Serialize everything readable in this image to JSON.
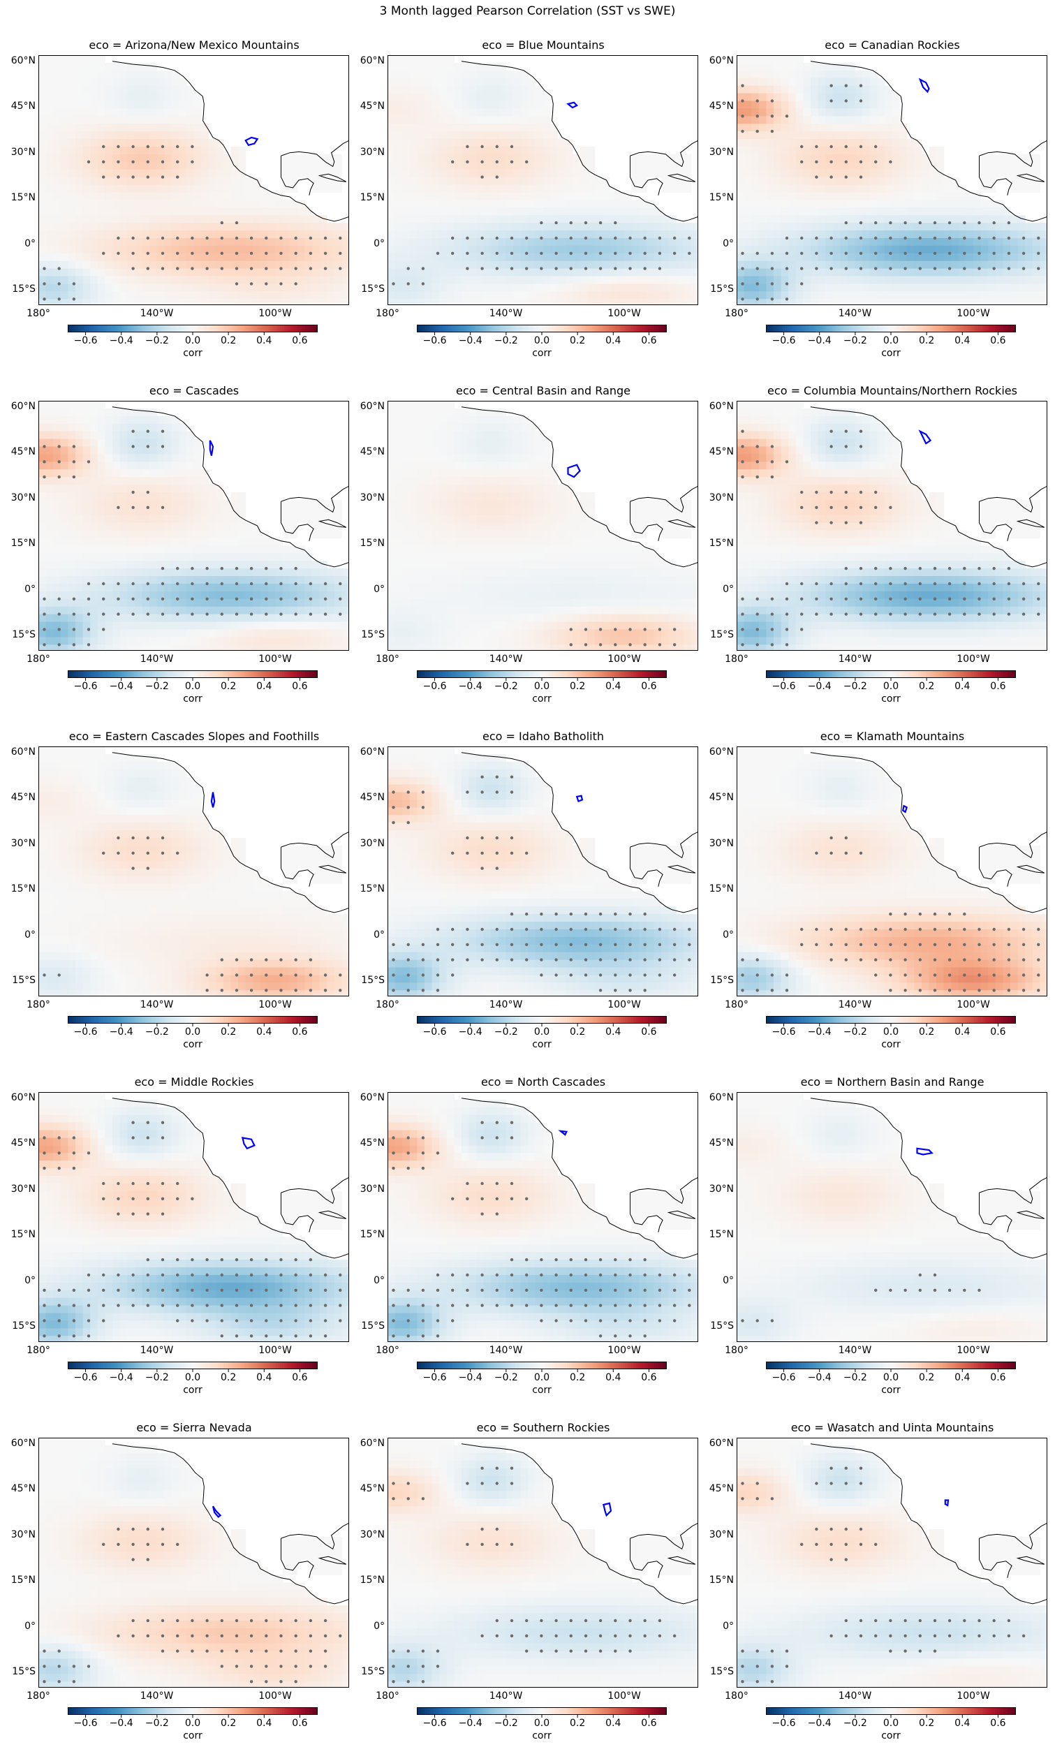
{
  "figure_title": "3 Month lagged Pearson Correlation (SST vs SWE)",
  "colors": {
    "colormap": [
      "#053061",
      "#2166ac",
      "#4393c3",
      "#92c5de",
      "#d1e5f0",
      "#f7f7f7",
      "#fddbc7",
      "#f4a582",
      "#d6604d",
      "#b2182b",
      "#67001f"
    ],
    "stipple": "#6b6b6b",
    "region_outline": "#0000ff",
    "land": "#ffffff",
    "coast": "#000000"
  },
  "chart_data": {
    "type": "heatmap",
    "panel_title_prefix": "eco = ",
    "lon_ticks": [
      "180°",
      "140°W",
      "100°W"
    ],
    "lat_ticks": [
      "60°N",
      "45°N",
      "30°N",
      "15°N",
      "0°",
      "15°S"
    ],
    "colorbar": {
      "label": "corr",
      "vmin": -0.7,
      "vmax": 0.7,
      "ticks": [
        "−0.6",
        "−0.4",
        "−0.2",
        "0.0",
        "0.2",
        "0.4",
        "0.6"
      ],
      "cmap": "RdBu_r"
    },
    "panels": [
      {
        "eco": "Arizona/New Mexico Mountains",
        "nino": 0.22,
        "subtropic_n": 0.18,
        "np_blob": 0.0,
        "south_east": 0.05,
        "west_south": -0.2
      },
      {
        "eco": "Blue Mountains",
        "nino": -0.25,
        "subtropic_n": 0.12,
        "np_blob": 0.05,
        "south_east": 0.1,
        "west_south": -0.1
      },
      {
        "eco": "Canadian Rockies",
        "nino": -0.35,
        "subtropic_n": 0.15,
        "np_blob": 0.3,
        "south_east": 0.0,
        "west_south": -0.3
      },
      {
        "eco": "Cascades",
        "nino": -0.3,
        "subtropic_n": 0.1,
        "np_blob": 0.28,
        "south_east": 0.1,
        "west_south": -0.3
      },
      {
        "eco": "Central Basin and Range",
        "nino": -0.05,
        "subtropic_n": 0.08,
        "np_blob": 0.0,
        "south_east": 0.2,
        "west_south": -0.05
      },
      {
        "eco": "Columbia Mountains/Northern Rockies",
        "nino": -0.35,
        "subtropic_n": 0.15,
        "np_blob": 0.3,
        "south_east": 0.0,
        "west_south": -0.3
      },
      {
        "eco": "Eastern Cascades Slopes and Foothills",
        "nino": 0.05,
        "subtropic_n": 0.12,
        "np_blob": 0.05,
        "south_east": 0.25,
        "west_south": -0.1
      },
      {
        "eco": "Idaho Batholith",
        "nino": -0.3,
        "subtropic_n": 0.12,
        "np_blob": 0.22,
        "south_east": -0.1,
        "west_south": -0.3
      },
      {
        "eco": "Klamath Mountains",
        "nino": 0.25,
        "subtropic_n": 0.1,
        "np_blob": 0.0,
        "south_east": 0.3,
        "west_south": -0.25
      },
      {
        "eco": "Middle Rockies",
        "nino": -0.35,
        "subtropic_n": 0.15,
        "np_blob": 0.28,
        "south_east": -0.15,
        "west_south": -0.3
      },
      {
        "eco": "North Cascades",
        "nino": -0.3,
        "subtropic_n": 0.12,
        "np_blob": 0.28,
        "south_east": -0.1,
        "west_south": -0.3
      },
      {
        "eco": "Northern Basin and Range",
        "nino": -0.1,
        "subtropic_n": 0.08,
        "np_blob": 0.05,
        "south_east": 0.05,
        "west_south": -0.1
      },
      {
        "eco": "Sierra Nevada",
        "nino": 0.18,
        "subtropic_n": 0.12,
        "np_blob": 0.0,
        "south_east": 0.1,
        "west_south": -0.2
      },
      {
        "eco": "Southern Rockies",
        "nino": -0.15,
        "subtropic_n": 0.1,
        "np_blob": 0.15,
        "south_east": 0.0,
        "west_south": -0.2
      },
      {
        "eco": "Wasatch and Uinta Mountains",
        "nino": -0.15,
        "subtropic_n": 0.12,
        "np_blob": 0.15,
        "south_east": 0.05,
        "west_south": -0.2
      }
    ]
  }
}
